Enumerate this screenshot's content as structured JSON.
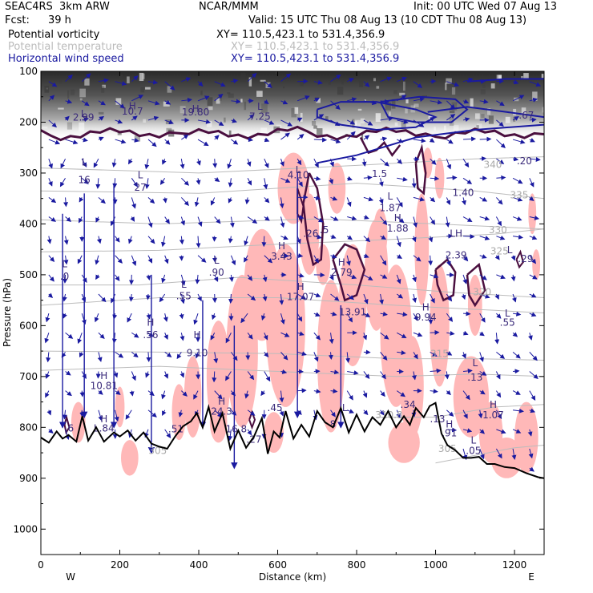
{
  "header": {
    "model": "SEAC4RS  3km ARW",
    "org": "NCAR/MMM",
    "init": "Init: 00 UTC Wed 07 Aug 13",
    "fcst_label": "Fcst:",
    "fcst_value": "39 h",
    "valid": "Valid: 15 UTC Thu 08 Aug 13 (10 CDT Thu 08 Aug 13)",
    "fields": [
      {
        "name": "Potential vorticity",
        "xy": "XY= 110.5,423.1 to 531.4,356.9",
        "color": "#000000"
      },
      {
        "name": "Potential temperature",
        "xy": "XY= 110.5,423.1 to 531.4,356.9",
        "color": "#bbbbbb"
      },
      {
        "name": "Horizontal wind speed",
        "xy": "XY= 110.5,423.1 to 531.4,356.9",
        "color": "#1a1aa0"
      }
    ]
  },
  "chart_data": {
    "type": "cross-section",
    "xlabel": "Distance (km)",
    "ylabel": "Pressure (hPa)",
    "xlim": [
      0,
      1275
    ],
    "ylim": [
      100,
      1050
    ],
    "x_ticks": [
      0,
      200,
      400,
      600,
      800,
      1000,
      1200
    ],
    "y_ticks": [
      100,
      200,
      300,
      400,
      500,
      600,
      700,
      800,
      900,
      1000
    ],
    "left_end_label": "W",
    "right_end_label": "E",
    "colors": {
      "pv_contour": "#4a0f3f",
      "pv_fill": "#ffb8b8",
      "theta": "#bcbcbc",
      "wind": "#1a1aa0",
      "terrain": "#000000"
    },
    "terrain": {
      "x": [
        0,
        20,
        40,
        55,
        70,
        90,
        105,
        120,
        140,
        160,
        185,
        200,
        220,
        240,
        260,
        280,
        300,
        320,
        340,
        360,
        380,
        395,
        410,
        425,
        440,
        460,
        480,
        500,
        520,
        540,
        560,
        575,
        590,
        605,
        620,
        640,
        660,
        680,
        700,
        720,
        740,
        760,
        780,
        800,
        820,
        840,
        860,
        880,
        900,
        920,
        935,
        950,
        970,
        985,
        1000,
        1015,
        1030,
        1050,
        1070,
        1090,
        1110,
        1130,
        1150,
        1175,
        1200,
        1230,
        1260,
        1275
      ],
      "p": [
        820,
        830,
        808,
        822,
        815,
        828,
        778,
        826,
        800,
        828,
        810,
        818,
        806,
        826,
        810,
        832,
        838,
        842,
        818,
        798,
        788,
        772,
        800,
        760,
        808,
        772,
        842,
        806,
        840,
        818,
        782,
        852,
        808,
        820,
        768,
        822,
        795,
        818,
        768,
        790,
        800,
        762,
        810,
        775,
        808,
        780,
        795,
        768,
        800,
        778,
        795,
        762,
        780,
        758,
        752,
        812,
        835,
        845,
        860,
        860,
        858,
        872,
        872,
        878,
        880,
        890,
        898,
        900
      ]
    },
    "pv_labels": [
      {
        "text": "L",
        "x": 108,
        "p": 190
      },
      {
        "text": "2.99",
        "x": 108,
        "p": 197
      },
      {
        "text": "H",
        "x": 232,
        "p": 175
      },
      {
        "text": "10.7",
        "x": 232,
        "p": 185
      },
      {
        "text": "H",
        "x": 392,
        "p": 180
      },
      {
        "text": "19.80",
        "x": 392,
        "p": 187
      },
      {
        "text": "L",
        "x": 555,
        "p": 176
      },
      {
        "text": "7.25",
        "x": 555,
        "p": 195
      },
      {
        "text": ".67",
        "x": 1230,
        "p": 193
      },
      {
        "text": "L",
        "x": 110,
        "p": 285
      },
      {
        "text": "16",
        "x": 110,
        "p": 320
      },
      {
        "text": "L",
        "x": 252,
        "p": 310
      },
      {
        "text": "27",
        "x": 252,
        "p": 335
      },
      {
        "text": "L",
        "x": 652,
        "p": 300
      },
      {
        "text": "4.10",
        "x": 652,
        "p": 310
      },
      {
        "text": "1.5",
        "x": 858,
        "p": 308
      },
      {
        "text": ".20",
        "x": 1225,
        "p": 283
      },
      {
        "text": "1.40",
        "x": 1070,
        "p": 345
      },
      {
        "text": "L",
        "x": 885,
        "p": 352
      },
      {
        "text": "1.87",
        "x": 885,
        "p": 375
      },
      {
        "text": "H",
        "x": 904,
        "p": 395
      },
      {
        "text": "1.88",
        "x": 904,
        "p": 415
      },
      {
        "text": "H",
        "x": 610,
        "p": 450
      },
      {
        "text": "3.43",
        "x": 610,
        "p": 470
      },
      {
        "text": ".26",
        "x": 684,
        "p": 425
      },
      {
        "text": ".5",
        "x": 718,
        "p": 418
      },
      {
        "text": "LH",
        "x": 1052,
        "p": 425
      },
      {
        "text": "2.39",
        "x": 1052,
        "p": 468
      },
      {
        "text": "L",
        "x": 1188,
        "p": 458
      },
      {
        "text": ".29",
        "x": 1228,
        "p": 475
      },
      {
        "text": "L",
        "x": 60,
        "p": 485
      },
      {
        "text": ".0",
        "x": 60,
        "p": 510
      },
      {
        "text": "L",
        "x": 445,
        "p": 478
      },
      {
        "text": ".90",
        "x": 445,
        "p": 502
      },
      {
        "text": "H",
        "x": 762,
        "p": 482
      },
      {
        "text": "2.79",
        "x": 762,
        "p": 502
      },
      {
        "text": "L",
        "x": 362,
        "p": 525
      },
      {
        "text": ".55",
        "x": 362,
        "p": 548
      },
      {
        "text": "H",
        "x": 658,
        "p": 530
      },
      {
        "text": "17.07",
        "x": 658,
        "p": 550
      },
      {
        "text": "13.91",
        "x": 790,
        "p": 580
      },
      {
        "text": "H",
        "x": 975,
        "p": 570
      },
      {
        "text": "9.94",
        "x": 975,
        "p": 590
      },
      {
        "text": "L",
        "x": 1182,
        "p": 582
      },
      {
        "text": ".55",
        "x": 1182,
        "p": 600
      },
      {
        "text": "H",
        "x": 278,
        "p": 600
      },
      {
        "text": ".56",
        "x": 278,
        "p": 625
      },
      {
        "text": "H",
        "x": 396,
        "p": 625
      },
      {
        "text": "9.10",
        "x": 396,
        "p": 660
      },
      {
        "text": "L",
        "x": 1100,
        "p": 680
      },
      {
        "text": ".13",
        "x": 1100,
        "p": 708
      },
      {
        "text": "H",
        "x": 160,
        "p": 705
      },
      {
        "text": "10.81",
        "x": 160,
        "p": 725
      },
      {
        "text": "H",
        "x": 458,
        "p": 755
      },
      {
        "text": "24.3",
        "x": 458,
        "p": 775
      },
      {
        "text": ".45",
        "x": 593,
        "p": 768
      },
      {
        "text": "L",
        "x": 770,
        "p": 768
      },
      {
        "text": ".34",
        "x": 930,
        "p": 762
      },
      {
        "text": "H",
        "x": 1146,
        "p": 762
      },
      {
        "text": "1.07",
        "x": 1146,
        "p": 782
      },
      {
        "text": "H",
        "x": 160,
        "p": 790
      },
      {
        "text": "L.84",
        "x": 160,
        "p": 808
      },
      {
        "text": ".13",
        "x": 1005,
        "p": 790
      },
      {
        "text": ".6",
        "x": 72,
        "p": 808
      },
      {
        "text": ".51",
        "x": 342,
        "p": 810
      },
      {
        "text": "16.8",
        "x": 495,
        "p": 810
      },
      {
        "text": "8",
        "x": 740,
        "p": 800
      },
      {
        "text": "H",
        "x": 1035,
        "p": 800
      },
      {
        "text": ".91",
        "x": 1035,
        "p": 818
      },
      {
        "text": ".27",
        "x": 540,
        "p": 830
      },
      {
        "text": "L",
        "x": 1096,
        "p": 832
      },
      {
        "text": ".05",
        "x": 1096,
        "p": 852
      }
    ],
    "theta_labels": [
      {
        "text": "340",
        "x": 1145,
        "p": 290
      },
      {
        "text": "335",
        "x": 1212,
        "p": 350
      },
      {
        "text": "330",
        "x": 1158,
        "p": 418
      },
      {
        "text": "325",
        "x": 1162,
        "p": 460
      },
      {
        "text": "320",
        "x": 1118,
        "p": 540
      },
      {
        "text": "315",
        "x": 1010,
        "p": 662
      },
      {
        "text": "310.8",
        "x": 882,
        "p": 782
      },
      {
        "text": "305",
        "x": 1030,
        "p": 848
      },
      {
        "text": "305",
        "x": 296,
        "p": 852
      }
    ]
  }
}
